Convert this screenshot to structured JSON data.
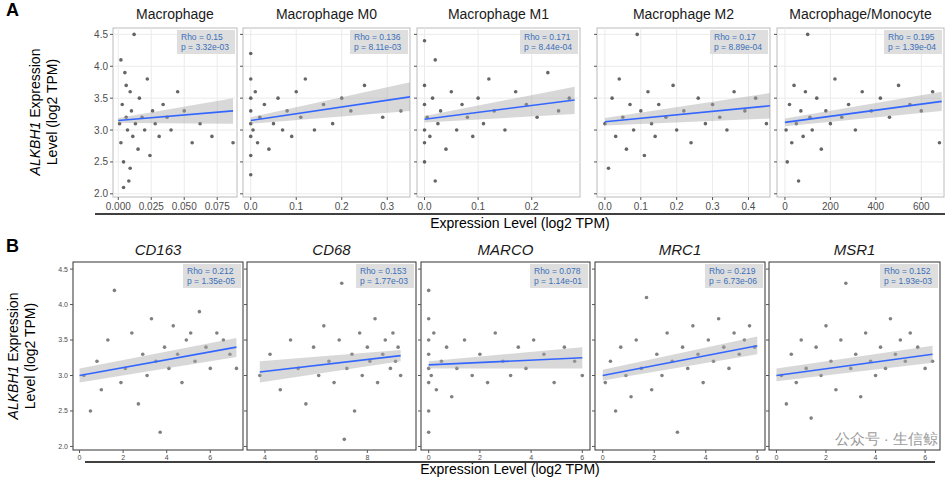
{
  "chart_data": [
    {
      "type": "scatter",
      "title": "Macrophage",
      "x": [
        0.001,
        0.002,
        0.003,
        0.004,
        0.005,
        0.006,
        0.007,
        0.008,
        0.009,
        0.01,
        0.011,
        0.012,
        0.013,
        0.015,
        0.016,
        0.018,
        0.02,
        0.022,
        0.024,
        0.026,
        0.028,
        0.031,
        0.034,
        0.037,
        0.04,
        0.045,
        0.05,
        0.056,
        0.062,
        0.071,
        0.087,
        0.002,
        0.004,
        0.006,
        0.009
      ],
      "values": [
        3.1,
        2.8,
        3.4,
        2.5,
        3.9,
        3.2,
        3.0,
        2.2,
        3.6,
        3.3,
        2.9,
        4.5,
        3.1,
        2.7,
        3.5,
        3.2,
        3.0,
        3.8,
        2.6,
        3.3,
        3.1,
        2.9,
        3.4,
        3.2,
        3.0,
        3.6,
        3.3,
        2.8,
        3.1,
        2.9,
        2.8,
        4.1,
        2.1,
        3.7,
        2.4
      ],
      "color": "#333333",
      "xlim": [
        -0.004,
        0.09
      ],
      "ylim": [
        1.95,
        4.6
      ],
      "xticks": [
        {
          "value": 0,
          "label": "0.000"
        },
        0.025,
        {
          "value": 0.05,
          "label": "0.050"
        },
        0.075
      ],
      "yticks": [
        {
          "value": 2,
          "label": "2.0"
        },
        2.5,
        {
          "value": 3,
          "label": "3.0"
        },
        3.5,
        {
          "value": 4,
          "label": "4.0"
        },
        4.5
      ],
      "grid": true,
      "tick_labels": true,
      "annotations": [
        "Rho = 0.15",
        "p = 3.32e-03"
      ],
      "trend": {
        "x": [
          0,
          0.087
        ],
        "values": [
          3.15,
          3.3
        ],
        "lower": [
          3.11,
          3.1
        ],
        "upper": [
          3.19,
          3.5
        ],
        "color": "#3366ff"
      }
    },
    {
      "type": "scatter",
      "title": "Macrophage M0",
      "x": [
        0,
        0,
        0,
        0,
        0,
        0,
        0,
        0,
        0.005,
        0.01,
        0.015,
        0.02,
        0.03,
        0.04,
        0.05,
        0.06,
        0.07,
        0.08,
        0.09,
        0.1,
        0.11,
        0.12,
        0.14,
        0.16,
        0.18,
        0.2,
        0.22,
        0.25,
        0.29,
        0.33
      ],
      "values": [
        3.1,
        2.6,
        3.5,
        2.9,
        3.8,
        2.3,
        3.3,
        4.2,
        3.0,
        3.6,
        2.8,
        3.2,
        3.4,
        2.7,
        3.1,
        3.5,
        3.0,
        3.3,
        2.9,
        3.6,
        3.2,
        3.8,
        3.0,
        3.4,
        3.1,
        3.5,
        3.3,
        3.7,
        3.2,
        3.3
      ],
      "color": "#333333",
      "xlim": [
        -0.017,
        0.35
      ],
      "ylim": [
        1.95,
        4.6
      ],
      "xticks": [
        {
          "value": 0,
          "label": "0.0"
        },
        0.1,
        0.2,
        0.3
      ],
      "yticks": [
        {
          "value": 2,
          "label": "2.0"
        },
        2.5,
        {
          "value": 3,
          "label": "3.0"
        },
        3.5,
        {
          "value": 4,
          "label": "4.0"
        },
        4.5
      ],
      "grid": true,
      "tick_labels": "x",
      "annotations": [
        "Rho = 0.136",
        "p = 8.11e-03"
      ],
      "trend": {
        "x": [
          0,
          0.35
        ],
        "values": [
          3.15,
          3.52
        ],
        "lower": [
          3.1,
          3.3
        ],
        "upper": [
          3.2,
          3.75
        ],
        "color": "#3366ff"
      }
    },
    {
      "type": "scatter",
      "title": "Macrophage M1",
      "x": [
        0,
        0,
        0,
        0,
        0,
        0,
        0.005,
        0.01,
        0.015,
        0.02,
        0.025,
        0.03,
        0.04,
        0.05,
        0.06,
        0.07,
        0.08,
        0.09,
        0.1,
        0.11,
        0.12,
        0.13,
        0.15,
        0.17,
        0.19,
        0.21,
        0.23,
        0.25,
        0.27,
        0.02
      ],
      "values": [
        3.0,
        2.5,
        3.4,
        2.8,
        3.7,
        4.4,
        3.2,
        2.9,
        3.5,
        2.2,
        3.1,
        3.3,
        2.7,
        3.6,
        3.0,
        3.4,
        3.2,
        2.9,
        3.5,
        3.1,
        3.8,
        3.3,
        3.0,
        3.6,
        3.4,
        3.2,
        3.9,
        3.3,
        3.5,
        4.1
      ],
      "color": "#333333",
      "xlim": [
        -0.014,
        0.29
      ],
      "ylim": [
        1.95,
        4.6
      ],
      "xticks": [
        {
          "value": 0,
          "label": "0.0"
        },
        0.1,
        0.2
      ],
      "yticks": [
        {
          "value": 2,
          "label": "2.0"
        },
        2.5,
        {
          "value": 3,
          "label": "3.0"
        },
        3.5,
        {
          "value": 4,
          "label": "4.0"
        },
        4.5
      ],
      "grid": true,
      "tick_labels": "x",
      "annotations": [
        "Rho = 0.171",
        "p = 8.44e-04"
      ],
      "trend": {
        "x": [
          0,
          0.28
        ],
        "values": [
          3.17,
          3.47
        ],
        "lower": [
          3.12,
          3.25
        ],
        "upper": [
          3.22,
          3.68
        ],
        "color": "#3366ff"
      }
    },
    {
      "type": "scatter",
      "title": "Macrophage M2",
      "x": [
        0,
        0.01,
        0.02,
        0.03,
        0.04,
        0.05,
        0.06,
        0.07,
        0.08,
        0.09,
        0.1,
        0.11,
        0.12,
        0.13,
        0.14,
        0.15,
        0.17,
        0.19,
        0.2,
        0.22,
        0.24,
        0.26,
        0.28,
        0.3,
        0.32,
        0.34,
        0.36,
        0.39,
        0.42,
        0.45
      ],
      "values": [
        3.1,
        2.4,
        3.5,
        2.9,
        3.8,
        3.2,
        2.7,
        3.4,
        3.0,
        4.5,
        3.3,
        2.6,
        3.6,
        3.1,
        2.9,
        3.4,
        3.2,
        3.7,
        3.0,
        3.3,
        2.8,
        3.5,
        3.1,
        3.4,
        3.2,
        3.0,
        3.6,
        3.3,
        3.5,
        3.1
      ],
      "color": "#333333",
      "xlim": [
        -0.022,
        0.46
      ],
      "ylim": [
        1.95,
        4.6
      ],
      "xticks": [
        {
          "value": 0,
          "label": "0.0"
        },
        0.1,
        0.2,
        0.3,
        0.4
      ],
      "yticks": [
        {
          "value": 2,
          "label": "2.0"
        },
        2.5,
        {
          "value": 3,
          "label": "3.0"
        },
        3.5,
        {
          "value": 4,
          "label": "4.0"
        },
        4.5
      ],
      "grid": true,
      "tick_labels": "x",
      "annotations": [
        "Rho = 0.17",
        "p = 8.89e-04"
      ],
      "trend": {
        "x": [
          0,
          0.46
        ],
        "values": [
          3.13,
          3.38
        ],
        "lower": [
          3.07,
          3.18
        ],
        "upper": [
          3.19,
          3.58
        ],
        "color": "#3366ff"
      }
    },
    {
      "type": "scatter",
      "title": "Macrophage/Monocyte",
      "x": [
        5,
        10,
        20,
        30,
        40,
        50,
        60,
        70,
        80,
        90,
        100,
        110,
        120,
        140,
        160,
        180,
        200,
        220,
        250,
        280,
        310,
        340,
        380,
        420,
        460,
        500,
        550,
        600,
        650,
        680
      ],
      "values": [
        3.0,
        2.5,
        3.4,
        2.8,
        3.7,
        3.1,
        2.2,
        3.3,
        2.9,
        3.6,
        4.5,
        3.2,
        3.0,
        3.5,
        2.7,
        3.3,
        3.1,
        3.8,
        3.2,
        3.4,
        3.0,
        3.6,
        3.3,
        3.5,
        3.2,
        3.7,
        3.4,
        3.3,
        3.6,
        2.8
      ],
      "color": "#333333",
      "xlim": [
        -35,
        700
      ],
      "ylim": [
        1.95,
        4.6
      ],
      "xticks": [
        0,
        200,
        400,
        600
      ],
      "yticks": [
        {
          "value": 2,
          "label": "2.0"
        },
        2.5,
        {
          "value": 3,
          "label": "3.0"
        },
        3.5,
        {
          "value": 4,
          "label": "4.0"
        },
        4.5
      ],
      "grid": true,
      "tick_labels": "x",
      "annotations": [
        "Rho = 0.195",
        "p = 1.39e-04"
      ],
      "trend": {
        "x": [
          0,
          690
        ],
        "values": [
          3.12,
          3.45
        ],
        "lower": [
          3.06,
          3.3
        ],
        "upper": [
          3.18,
          3.6
        ],
        "color": "#3366ff"
      }
    },
    {
      "type": "scatter",
      "title": "CD163",
      "x": [
        0.2,
        0.5,
        0.8,
        1.0,
        1.3,
        1.6,
        1.9,
        2.1,
        2.4,
        2.7,
        2.9,
        3.1,
        3.3,
        3.5,
        3.7,
        3.9,
        4.1,
        4.3,
        4.5,
        4.7,
        4.9,
        5.1,
        5.3,
        5.5,
        5.8,
        6.0,
        6.3,
        6.6,
        6.9,
        7.2
      ],
      "values": [
        3.0,
        2.5,
        3.2,
        2.8,
        3.5,
        4.2,
        2.9,
        3.1,
        3.6,
        2.6,
        3.3,
        3.0,
        3.8,
        3.2,
        2.2,
        3.4,
        3.1,
        3.7,
        3.3,
        2.9,
        3.5,
        3.6,
        3.2,
        3.9,
        3.4,
        3.1,
        3.6,
        3.5,
        3.3,
        3.1
      ],
      "color": "#555555",
      "xlim": [
        -0.3,
        7.5
      ],
      "ylim": [
        1.95,
        4.6
      ],
      "xticks": [
        0,
        2,
        4,
        6
      ],
      "yticks": [
        {
          "value": 2,
          "label": "2.0"
        },
        2.5,
        {
          "value": 3,
          "label": "3.0"
        },
        3.5,
        {
          "value": 4,
          "label": "4.0"
        },
        4.5
      ],
      "grid": false,
      "tick_labels": true,
      "annotations": [
        "Rho = 0.212",
        "p = 1.35e-05"
      ],
      "trend": {
        "x": [
          0,
          7.2
        ],
        "values": [
          3.0,
          3.4
        ],
        "lower": [
          2.9,
          3.26
        ],
        "upper": [
          3.1,
          3.53
        ],
        "color": "#3366ff"
      }
    },
    {
      "type": "scatter",
      "title": "CD68",
      "x": [
        3.8,
        4.2,
        4.6,
        5.0,
        5.3,
        5.6,
        5.9,
        6.1,
        6.3,
        6.5,
        6.7,
        6.9,
        7.0,
        7.2,
        7.4,
        7.5,
        7.7,
        7.8,
        8.0,
        8.1,
        8.3,
        8.4,
        8.6,
        8.7,
        8.9,
        9.0,
        9.1,
        9.2,
        9.3,
        7.1
      ],
      "values": [
        3.0,
        3.3,
        2.8,
        3.5,
        3.1,
        2.6,
        3.4,
        3.0,
        3.7,
        3.2,
        2.9,
        3.5,
        4.3,
        3.1,
        3.3,
        2.5,
        3.6,
        3.0,
        3.4,
        3.2,
        3.8,
        2.9,
        3.3,
        3.5,
        3.1,
        3.6,
        3.2,
        3.4,
        3.0,
        2.1
      ],
      "color": "#555555",
      "xlim": [
        3.3,
        9.9
      ],
      "ylim": [
        1.95,
        4.6
      ],
      "xticks": [
        4,
        6,
        8
      ],
      "yticks": [
        {
          "value": 2,
          "label": "2.0"
        },
        2.5,
        {
          "value": 3,
          "label": "3.0"
        },
        3.5,
        {
          "value": 4,
          "label": "4.0"
        },
        4.5
      ],
      "grid": false,
      "tick_labels": "x",
      "annotations": [
        "Rho = 0.153",
        "p = 1.77e-03"
      ],
      "trend": {
        "x": [
          3.8,
          9.3
        ],
        "values": [
          3.05,
          3.28
        ],
        "lower": [
          2.9,
          3.2
        ],
        "upper": [
          3.2,
          3.36
        ],
        "color": "#3366ff"
      }
    },
    {
      "type": "scatter",
      "title": "MARCO",
      "x": [
        0,
        0,
        0,
        0,
        0,
        0,
        0,
        0,
        0.1,
        0.2,
        0.3,
        0.5,
        0.7,
        0.9,
        1.1,
        1.4,
        1.7,
        2.0,
        2.3,
        2.6,
        2.9,
        3.2,
        3.5,
        3.8,
        4.1,
        4.5,
        4.9,
        5.3,
        5.7,
        6.0
      ],
      "values": [
        3.1,
        2.5,
        3.5,
        2.9,
        3.8,
        4.2,
        2.2,
        3.3,
        3.0,
        3.6,
        2.8,
        3.2,
        3.4,
        2.7,
        3.1,
        3.5,
        3.0,
        3.3,
        2.9,
        3.6,
        3.2,
        3.0,
        3.4,
        3.1,
        3.5,
        3.3,
        2.9,
        3.4,
        3.2,
        3.0
      ],
      "color": "#555555",
      "xlim": [
        -0.3,
        6.3
      ],
      "ylim": [
        1.95,
        4.6
      ],
      "xticks": [
        0,
        2,
        4,
        6
      ],
      "yticks": [
        {
          "value": 2,
          "label": "2.0"
        },
        2.5,
        {
          "value": 3,
          "label": "3.0"
        },
        3.5,
        {
          "value": 4,
          "label": "4.0"
        },
        4.5
      ],
      "grid": false,
      "tick_labels": "x",
      "annotations": [
        "Rho = 0.078",
        "p = 1.14e-01"
      ],
      "trend": {
        "x": [
          0,
          6
        ],
        "values": [
          3.15,
          3.25
        ],
        "lower": [
          3.1,
          3.1
        ],
        "upper": [
          3.2,
          3.4
        ],
        "color": "#3366ff"
      }
    },
    {
      "type": "scatter",
      "title": "MRC1",
      "x": [
        0.1,
        0.3,
        0.5,
        0.7,
        0.9,
        1.1,
        1.3,
        1.5,
        1.7,
        1.9,
        2.1,
        2.3,
        2.5,
        2.7,
        2.9,
        3.1,
        3.3,
        3.5,
        3.7,
        3.9,
        4.1,
        4.3,
        4.5,
        4.7,
        4.9,
        5.1,
        5.3,
        5.5,
        5.7,
        5.9
      ],
      "values": [
        2.9,
        3.2,
        2.5,
        3.4,
        3.0,
        2.7,
        3.5,
        3.1,
        4.1,
        2.8,
        3.3,
        3.0,
        3.6,
        3.2,
        2.2,
        3.4,
        3.1,
        3.7,
        3.3,
        2.9,
        3.5,
        3.2,
        3.8,
        3.4,
        3.1,
        3.6,
        3.3,
        3.5,
        3.7,
        3.4
      ],
      "color": "#555555",
      "xlim": [
        -0.3,
        6.3
      ],
      "ylim": [
        1.95,
        4.6
      ],
      "xticks": [
        0,
        2,
        4,
        6
      ],
      "yticks": [
        {
          "value": 2,
          "label": "2.0"
        },
        2.5,
        {
          "value": 3,
          "label": "3.0"
        },
        3.5,
        {
          "value": 4,
          "label": "4.0"
        },
        4.5
      ],
      "grid": false,
      "tick_labels": "x",
      "annotations": [
        "Rho = 0.219",
        "p = 6.73e-06"
      ],
      "trend": {
        "x": [
          0,
          6
        ],
        "values": [
          3.0,
          3.42
        ],
        "lower": [
          2.93,
          3.3
        ],
        "upper": [
          3.08,
          3.55
        ],
        "color": "#3366ff"
      }
    },
    {
      "type": "scatter",
      "title": "MSR1",
      "x": [
        0.2,
        0.4,
        0.6,
        0.8,
        1.0,
        1.2,
        1.4,
        1.6,
        1.8,
        2.0,
        2.2,
        2.4,
        2.6,
        2.8,
        3.0,
        3.2,
        3.4,
        3.6,
        3.8,
        4.0,
        4.2,
        4.4,
        4.6,
        4.8,
        5.0,
        5.2,
        5.4,
        5.7,
        6.0,
        6.3
      ],
      "values": [
        3.0,
        2.6,
        3.3,
        2.9,
        3.5,
        3.1,
        2.4,
        3.4,
        3.0,
        3.7,
        3.2,
        2.8,
        3.5,
        4.3,
        3.1,
        3.3,
        2.7,
        3.6,
        3.2,
        3.0,
        3.4,
        3.1,
        3.8,
        3.3,
        3.5,
        3.2,
        3.6,
        3.4,
        3.1,
        3.2
      ],
      "color": "#555555",
      "xlim": [
        -0.3,
        6.6
      ],
      "ylim": [
        1.95,
        4.6
      ],
      "xticks": [
        0,
        2,
        4,
        6
      ],
      "yticks": [
        {
          "value": 2,
          "label": "2.0"
        },
        2.5,
        {
          "value": 3,
          "label": "3.0"
        },
        3.5,
        {
          "value": 4,
          "label": "4.0"
        },
        4.5
      ],
      "grid": false,
      "tick_labels": "x",
      "annotations": [
        "Rho = 0.152",
        "p = 1.93e-03"
      ],
      "trend": {
        "x": [
          0,
          6.3
        ],
        "values": [
          3.0,
          3.3
        ],
        "lower": [
          2.92,
          3.18
        ],
        "upper": [
          3.1,
          3.42
        ],
        "color": "#3366ff"
      }
    }
  ],
  "figure": {
    "panel_labels": [
      "A",
      "B"
    ],
    "y_labels": [
      "ALKBH1 Expression Level (log2 TPM)",
      "ALKBH1 Expression Level (log2 TPM)"
    ],
    "x_labels": [
      "Expression Level (log2 TPM)",
      "Expression Level (log2 TPM)"
    ],
    "watermark": "公众号 · 生信鲸"
  }
}
